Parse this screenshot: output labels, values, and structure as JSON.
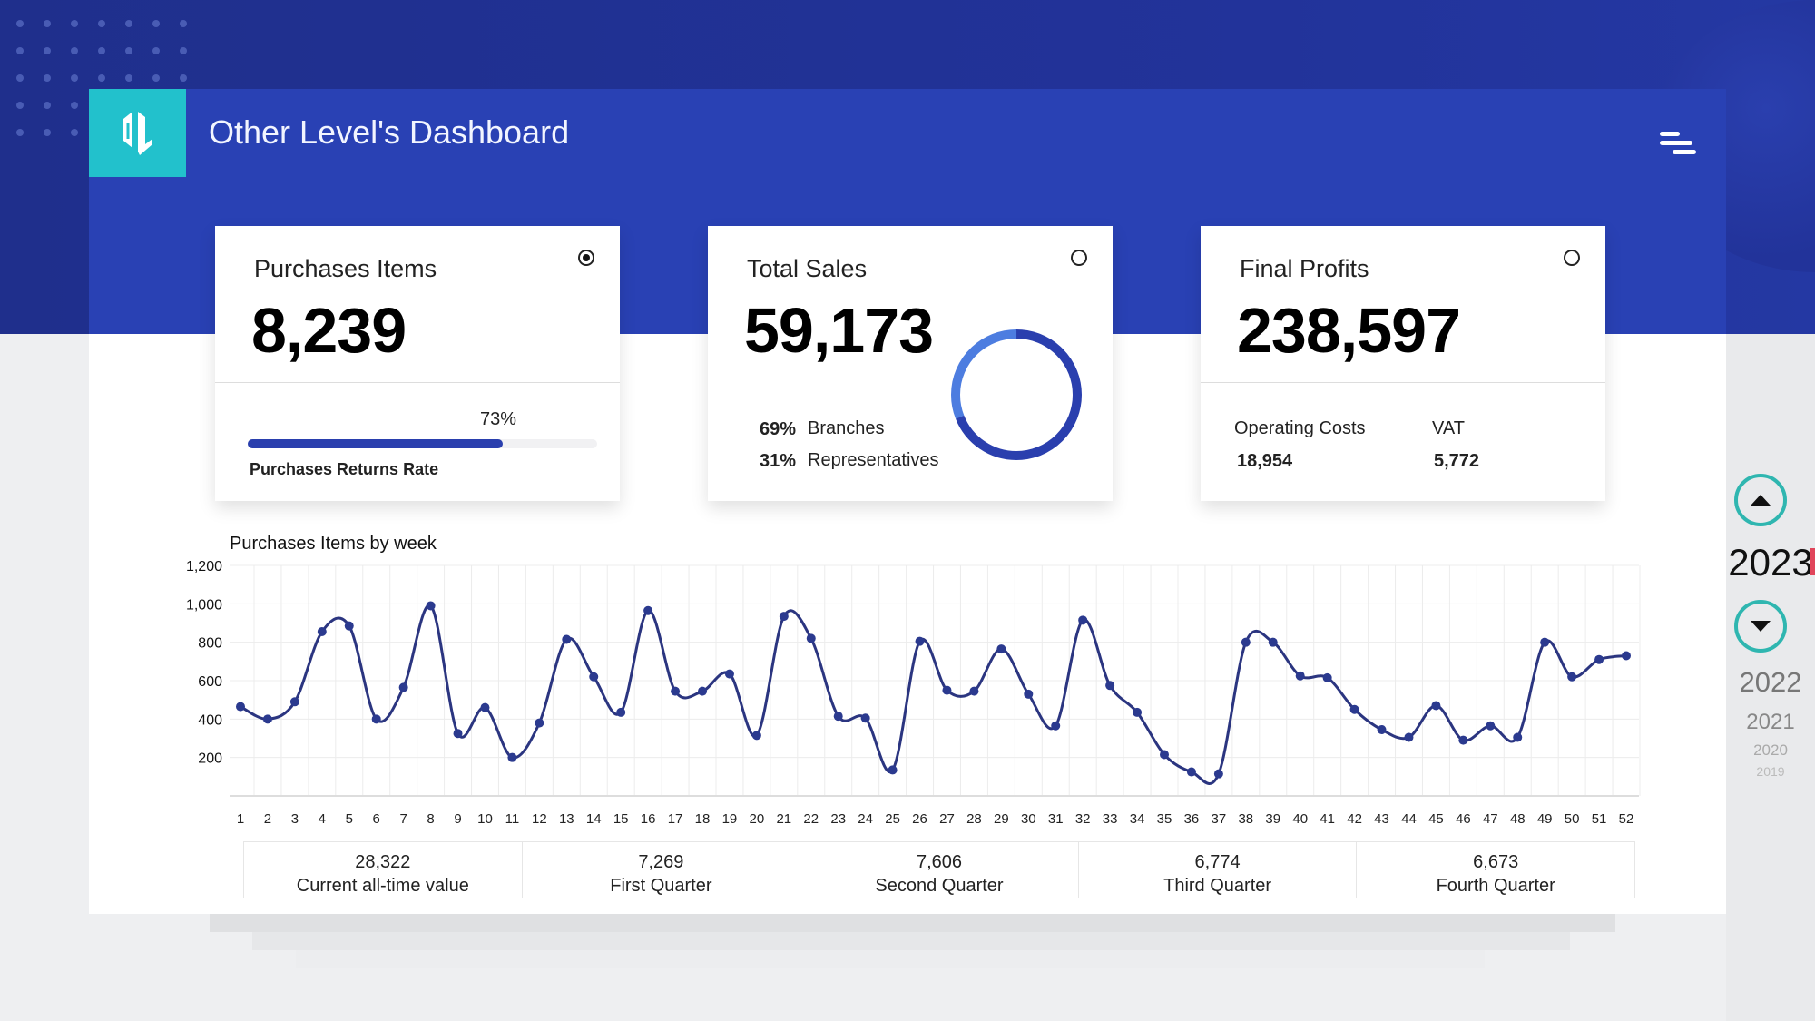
{
  "header": {
    "title": "Other Level's Dashboard",
    "logo_text": "OL"
  },
  "cards": [
    {
      "label": "Purchases Items",
      "value": "8,239",
      "progress_label": "Purchases Returns Rate",
      "progress_percent": 73,
      "progress_text": "73%",
      "selected": true
    },
    {
      "label": "Total Sales",
      "value": "59,173",
      "breakdown": [
        {
          "pct": "69%",
          "name": "Branches"
        },
        {
          "pct": "31%",
          "name": "Representatives"
        }
      ],
      "donut": {
        "primary_fraction": 0.69,
        "colors": [
          "#2a3fae",
          "#4d7de0"
        ]
      },
      "selected": false
    },
    {
      "label": "Final Profits",
      "value": "238,597",
      "metrics": [
        {
          "name": "Operating Costs",
          "value": "18,954"
        },
        {
          "name": "VAT",
          "value": "5,772"
        }
      ],
      "selected": false
    }
  ],
  "chart_data": {
    "type": "line",
    "title": "Purchases Items by week",
    "xlabel": "",
    "ylabel": "",
    "ylim": [
      0,
      1200
    ],
    "yticks": [
      200,
      400,
      600,
      800,
      1000,
      1200
    ],
    "ytick_labels": [
      "200",
      "400",
      "600",
      "800",
      "1,000",
      "1,200"
    ],
    "x": [
      1,
      2,
      3,
      4,
      5,
      6,
      7,
      8,
      9,
      10,
      11,
      12,
      13,
      14,
      15,
      16,
      17,
      18,
      19,
      20,
      21,
      22,
      23,
      24,
      25,
      26,
      27,
      28,
      29,
      30,
      31,
      32,
      33,
      34,
      35,
      36,
      37,
      38,
      39,
      40,
      41,
      42,
      43,
      44,
      45,
      46,
      47,
      48,
      49,
      50,
      51,
      52
    ],
    "values": [
      465,
      400,
      490,
      855,
      885,
      400,
      565,
      990,
      325,
      460,
      200,
      380,
      815,
      620,
      435,
      965,
      545,
      545,
      635,
      315,
      935,
      820,
      415,
      405,
      135,
      805,
      550,
      545,
      765,
      530,
      365,
      915,
      575,
      435,
      215,
      125,
      115,
      800,
      800,
      625,
      615,
      450,
      345,
      305,
      470,
      290,
      365,
      305,
      800,
      620,
      710,
      730
    ],
    "line_color": "#2b3580",
    "grid": true
  },
  "summary": [
    {
      "value": "28,322",
      "label": "Current all-time value"
    },
    {
      "value": "7,269",
      "label": "First Quarter"
    },
    {
      "value": "7,606",
      "label": "Second Quarter"
    },
    {
      "value": "6,774",
      "label": "Third Quarter"
    },
    {
      "value": "6,673",
      "label": "Fourth Quarter"
    }
  ],
  "years": {
    "current": "2023",
    "others": [
      "2022",
      "2021",
      "2020",
      "2019"
    ]
  },
  "colors": {
    "brand": "#2941b4",
    "accent": "#22c1cc",
    "year_ring": "#2fb6b0",
    "year_marker": "#e0455a"
  }
}
